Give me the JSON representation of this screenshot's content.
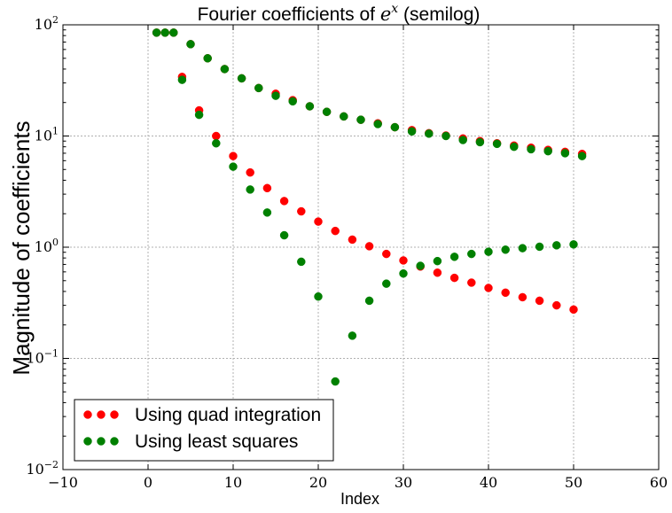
{
  "chart_data": {
    "type": "scatter",
    "title_text": "Fourier coefficients of",
    "title_math": "e",
    "title_math_sup": "x",
    "title_suffix": "(semilog)",
    "xlabel": "Index",
    "ylabel": "Magnitude of coefficients",
    "xlim": [
      -10,
      60
    ],
    "ylim": [
      0.01,
      100
    ],
    "yscale": "log",
    "grid": true,
    "legend_position": "lower-left",
    "x_ticks": [
      -10,
      0,
      10,
      20,
      30,
      40,
      50,
      60
    ],
    "x_tick_labels": [
      "−10",
      "0",
      "10",
      "20",
      "30",
      "40",
      "50",
      "60"
    ],
    "y_ticks": [
      0.01,
      0.1,
      1,
      10,
      100
    ],
    "y_tick_exponents": [
      "−2",
      "−1",
      "0",
      "1",
      "2"
    ],
    "y_tick_base": "10",
    "series": [
      {
        "name": "Using quad integration",
        "color": "#ff0000",
        "x": [
          1,
          2,
          3,
          4,
          5,
          6,
          7,
          8,
          9,
          10,
          11,
          12,
          13,
          14,
          15,
          16,
          17,
          18,
          19,
          20,
          21,
          22,
          23,
          24,
          25,
          26,
          27,
          28,
          29,
          30,
          31,
          32,
          33,
          34,
          35,
          36,
          37,
          38,
          39,
          40,
          41,
          42,
          43,
          44,
          45,
          46,
          47,
          48,
          49,
          50,
          51
        ],
        "y": [
          85,
          85,
          85,
          34,
          67,
          17,
          50,
          10,
          40,
          6.6,
          33,
          4.7,
          27,
          3.4,
          24,
          2.6,
          21,
          2.1,
          18.5,
          1.7,
          16.5,
          1.4,
          15,
          1.17,
          14,
          1.02,
          13,
          0.87,
          12,
          0.76,
          11.3,
          0.67,
          10.6,
          0.59,
          10.1,
          0.53,
          9.5,
          0.48,
          9.0,
          0.43,
          8.6,
          0.39,
          8.2,
          0.355,
          7.85,
          0.33,
          7.5,
          0.3,
          7.2,
          0.275,
          6.9
        ]
      },
      {
        "name": "Using least squares",
        "color": "#008000",
        "x": [
          1,
          2,
          3,
          4,
          5,
          6,
          7,
          8,
          9,
          10,
          11,
          12,
          13,
          14,
          15,
          16,
          17,
          18,
          19,
          20,
          21,
          22,
          23,
          24,
          25,
          26,
          27,
          28,
          29,
          30,
          31,
          32,
          33,
          34,
          35,
          36,
          37,
          38,
          39,
          40,
          41,
          42,
          43,
          44,
          45,
          46,
          47,
          48,
          49,
          50,
          51
        ],
        "y": [
          85,
          85,
          85,
          32,
          67,
          15.5,
          50,
          8.6,
          40,
          5.3,
          33,
          3.3,
          27,
          2.05,
          23,
          1.28,
          20.5,
          0.74,
          18.5,
          0.36,
          16.5,
          0.062,
          15,
          0.16,
          14,
          0.33,
          12.8,
          0.47,
          12,
          0.58,
          11,
          0.68,
          10.5,
          0.75,
          10,
          0.82,
          9.2,
          0.87,
          8.8,
          0.91,
          8.5,
          0.95,
          8,
          0.98,
          7.6,
          1.01,
          7.3,
          1.04,
          7.0,
          1.06,
          6.6
        ]
      }
    ]
  }
}
